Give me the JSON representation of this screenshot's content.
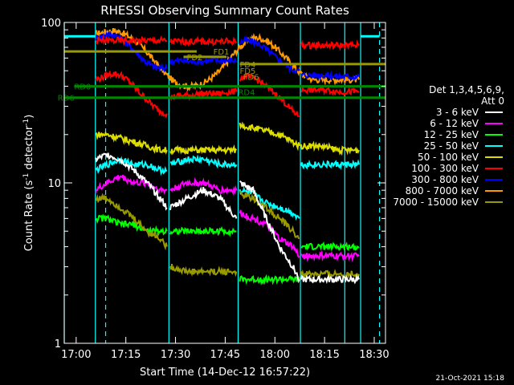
{
  "chart_data": {
    "type": "line",
    "title": "RHESSI Observing Summary Count Rates",
    "xlabel": "Start Time (14-Dec-12 16:57:22)",
    "ylabel_main": "Count Rate (s",
    "ylabel_sup": "-1",
    "ylabel_end": " detector",
    "ylabel_sup2": "-1",
    "ylabel_close": ")",
    "x_range_min": [
      -2.4,
      37.0
    ],
    "y_range": [
      1,
      100
    ],
    "y_scale": "log",
    "x_ticks": [
      {
        "label": "17:00",
        "min": 2.6
      },
      {
        "label": "17:15",
        "min": 17.6
      },
      {
        "label": "17:30",
        "min": 32.6
      },
      {
        "label": "17:45",
        "min": 47.6
      },
      {
        "label": "18:00",
        "min": 62.6
      },
      {
        "label": "18:15",
        "min": 77.6
      },
      {
        "label": "18:30",
        "min": 92.6
      }
    ],
    "y_ticks": [
      {
        "label": "100",
        "v": 100
      },
      {
        "label": "10",
        "v": 10
      },
      {
        "label": "1",
        "v": 1
      }
    ],
    "legend": {
      "placement": "right",
      "header1": "Det 1,3,4,5,6,9,",
      "header2": "Att 0",
      "entries": [
        {
          "label": "3 - 6 keV",
          "color": "#ffffff"
        },
        {
          "label": "6 - 12 keV",
          "color": "#ff00ff"
        },
        {
          "label": "12 - 25 keV",
          "color": "#00ff00"
        },
        {
          "label": "25 - 50 keV",
          "color": "#00ffff"
        },
        {
          "label": "50 - 100 keV",
          "color": "#dddd00"
        },
        {
          "label": "100 - 300 keV",
          "color": "#ff0000"
        },
        {
          "label": "300 - 800 keV",
          "color": "#0000ff"
        },
        {
          "label": "800 - 7000 keV",
          "color": "#ff9900"
        },
        {
          "label": "7000 - 15000 keV",
          "color": "#999900"
        }
      ]
    },
    "time_x_range": [
      -1.0,
      96.0
    ],
    "series": [
      {
        "name": "800 - 7000 keV",
        "color": "#ff9900",
        "segments": [
          {
            "x": [
              8.5,
              10,
              12,
              14,
              16,
              18,
              20,
              22,
              24,
              26,
              28,
              30,
              32,
              34,
              36,
              38,
              40,
              42,
              44,
              46,
              48,
              50,
              52,
              54,
              56,
              58,
              60,
              62,
              64,
              66,
              68,
              70,
              72,
              74,
              76,
              78,
              80,
              82,
              84,
              86,
              88
            ],
            "y": [
              85,
              86,
              88,
              89,
              87,
              83,
              78,
              72,
              65,
              58,
              52,
              47,
              43,
              41,
              40,
              40,
              41,
              43,
              46,
              50,
              56,
              63,
              70,
              76,
              80,
              80,
              77,
              72,
              66,
              60,
              54,
              49,
              46,
              44,
              44,
              44,
              44,
              44,
              44,
              44,
              44
            ]
          }
        ]
      },
      {
        "name": "300 - 800 keV",
        "color": "#0000ff",
        "segments": [
          {
            "x": [
              8.5,
              10,
              12,
              14,
              16,
              18,
              20,
              22,
              24,
              26,
              28,
              30
            ],
            "y": [
              80,
              82,
              84,
              84,
              80,
              74,
              67,
              61,
              56,
              53,
              52,
              52
            ]
          },
          {
            "x": [
              31,
              34,
              37,
              40,
              43,
              46,
              49,
              51
            ],
            "y": [
              57,
              58,
              57,
              57,
              58,
              58,
              58,
              58
            ]
          },
          {
            "x": [
              52,
              54,
              56,
              58,
              60,
              62,
              64,
              66,
              68,
              70
            ],
            "y": [
              75,
              77,
              76,
              73,
              68,
              63,
              58,
              54,
              51,
              50
            ]
          },
          {
            "x": [
              70.5,
              74,
              78,
              82,
              86,
              88
            ],
            "y": [
              47,
              47,
              47,
              46,
              46,
              46
            ]
          }
        ]
      },
      {
        "name": "100 - 300 keV",
        "color": "#ff0000",
        "segments": [
          {
            "x": [
              8.5,
              10,
              12,
              14,
              16,
              18,
              20,
              22,
              24,
              26,
              28,
              30
            ],
            "y": [
              44,
              45,
              47,
              48,
              47,
              44,
              40,
              36,
              33,
              30,
              28,
              27
            ]
          },
          {
            "x": [
              31,
              34,
              37,
              40,
              43,
              46,
              49,
              51
            ],
            "y": [
              34,
              35,
              35,
              36,
              36,
              36,
              37,
              37
            ]
          },
          {
            "x": [
              52,
              54,
              56,
              58,
              60,
              62,
              64,
              66,
              68,
              70
            ],
            "y": [
              45,
              46,
              45,
              43,
              40,
              37,
              34,
              31,
              28,
              26
            ]
          },
          {
            "x": [
              70.5,
              74,
              78,
              82,
              86,
              88
            ],
            "y": [
              38,
              38,
              38,
              37,
              37,
              37
            ]
          },
          {
            "x": [
              8.5,
              30
            ],
            "y": [
              77,
              77
            ]
          },
          {
            "x": [
              31,
              51
            ],
            "y": [
              76,
              76
            ]
          },
          {
            "x": [
              70.5,
              88
            ],
            "y": [
              72,
              72
            ]
          }
        ]
      },
      {
        "name": "50 - 100 keV",
        "color": "#dddd00",
        "segments": [
          {
            "x": [
              8.5,
              12,
              16,
              20,
              24,
              28,
              30
            ],
            "y": [
              20,
              20,
              19,
              18,
              17,
              16,
              16
            ]
          },
          {
            "x": [
              31,
              36,
              41,
              46,
              51
            ],
            "y": [
              16,
              16,
              16,
              16,
              16
            ]
          },
          {
            "x": [
              52,
              56,
              60,
              64,
              68,
              70
            ],
            "y": [
              23,
              22,
              21,
              20,
              18,
              17
            ]
          },
          {
            "x": [
              70.5,
              76,
              82,
              88
            ],
            "y": [
              17,
              17,
              16,
              16
            ]
          }
        ]
      },
      {
        "name": "25 - 50 keV",
        "color": "#00ffff",
        "segments": [
          {
            "x": [
              8.5,
              12,
              16,
              20,
              24,
              28,
              30
            ],
            "y": [
              12,
              13,
              14,
              13,
              13,
              12,
              12
            ]
          },
          {
            "x": [
              31,
              36,
              41,
              46,
              51
            ],
            "y": [
              13,
              14,
              14,
              13,
              13
            ]
          },
          {
            "x": [
              52,
              56,
              60,
              64,
              68,
              70
            ],
            "y": [
              9,
              8.5,
              7.5,
              7,
              6.5,
              6
            ]
          },
          {
            "x": [
              70.5,
              76,
              82,
              88
            ],
            "y": [
              13,
              13,
              13,
              13
            ]
          }
        ]
      },
      {
        "name": "6 - 12 keV",
        "color": "#ff00ff",
        "segments": [
          {
            "x": [
              8.5,
              12,
              16,
              20,
              24,
              28,
              30
            ],
            "y": [
              9,
              10,
              11,
              10,
              10,
              9,
              9
            ]
          },
          {
            "x": [
              31,
              36,
              41,
              46,
              51
            ],
            "y": [
              9,
              10,
              10,
              9,
              9
            ]
          },
          {
            "x": [
              52,
              56,
              60,
              64,
              68,
              70
            ],
            "y": [
              6.5,
              6,
              5.5,
              4.5,
              4,
              3.5
            ]
          },
          {
            "x": [
              70.5,
              76,
              82,
              88
            ],
            "y": [
              3.5,
              3.5,
              3.5,
              3.5
            ]
          }
        ]
      },
      {
        "name": "12 - 25 keV",
        "color": "#00ff00",
        "segments": [
          {
            "x": [
              8.5,
              12,
              16,
              20,
              24,
              28,
              30
            ],
            "y": [
              6,
              6,
              5.5,
              5.5,
              5,
              5,
              5
            ]
          },
          {
            "x": [
              31,
              36,
              41,
              46,
              51
            ],
            "y": [
              5,
              5,
              5,
              5,
              5
            ]
          },
          {
            "x": [
              52,
              56,
              60,
              64,
              68,
              70
            ],
            "y": [
              2.5,
              2.5,
              2.5,
              2.5,
              2.5,
              2.5
            ]
          },
          {
            "x": [
              70.5,
              76,
              82,
              88
            ],
            "y": [
              4,
              4,
              4,
              4
            ]
          }
        ]
      },
      {
        "name": "7000 - 15000 keV",
        "color": "#999900",
        "segments": [
          {
            "x": [
              8.5,
              12,
              16,
              20,
              24,
              28,
              30
            ],
            "y": [
              8,
              8,
              7,
              6,
              5,
              4.5,
              4
            ]
          },
          {
            "x": [
              31,
              36,
              41,
              46,
              51
            ],
            "y": [
              3,
              2.8,
              2.8,
              2.8,
              2.8
            ]
          },
          {
            "x": [
              52,
              56,
              60,
              64,
              68,
              70
            ],
            "y": [
              8.5,
              8,
              7,
              6,
              5,
              4.5
            ]
          },
          {
            "x": [
              70.5,
              76,
              82,
              88
            ],
            "y": [
              2.7,
              2.7,
              2.7,
              2.7
            ]
          }
        ]
      },
      {
        "name": "3 - 6 keV",
        "color": "#ffffff",
        "segments": [
          {
            "x": [
              8.5,
              12,
              16,
              20,
              24,
              28,
              30
            ],
            "y": [
              14,
              15,
              14,
              12,
              10,
              8,
              7
            ]
          },
          {
            "x": [
              31,
              36,
              41,
              46,
              51
            ],
            "y": [
              7,
              8,
              9,
              8,
              6
            ]
          },
          {
            "x": [
              52,
              56,
              60,
              64,
              68,
              70
            ],
            "y": [
              10,
              9,
              6,
              4,
              3,
              2.5
            ]
          },
          {
            "x": [
              70.5,
              76,
              82,
              88
            ],
            "y": [
              2.5,
              2.5,
              2.5,
              2.5
            ]
          }
        ]
      }
    ],
    "vertical_markers": [
      {
        "min": -1.0,
        "color": "#00ffff",
        "style": "solid"
      },
      {
        "min": 8.4,
        "color": "#00ffff",
        "style": "solid"
      },
      {
        "min": 11.5,
        "color": "#00ffff",
        "style": "dashed"
      },
      {
        "min": 30.6,
        "color": "#00ffff",
        "style": "solid"
      },
      {
        "min": 51.5,
        "color": "#00ffff",
        "style": "solid"
      },
      {
        "min": 70.3,
        "color": "#00ffff",
        "style": "solid"
      },
      {
        "min": 83.7,
        "color": "#00ffff",
        "style": "solid"
      },
      {
        "min": 88.5,
        "color": "#00ffff",
        "style": "solid"
      },
      {
        "min": 94.2,
        "color": "#00ffff",
        "style": "dashed"
      }
    ],
    "horizontal_bars": [
      {
        "x": [
          -1.0,
          8.4
        ],
        "y": 82,
        "color": "#00ffff"
      },
      {
        "x": [
          88.5,
          94.2
        ],
        "y": 82,
        "color": "#00ffff"
      },
      {
        "x": [
          -1.0,
          39
        ],
        "y": 66,
        "color": "#999900"
      },
      {
        "x": [
          35,
          48
        ],
        "y": 61,
        "color": "#999900"
      },
      {
        "x": [
          52,
          96
        ],
        "y": 55,
        "color": "#999900"
      },
      {
        "x": [
          2,
          96
        ],
        "y": 40,
        "color": "#008800"
      },
      {
        "x": [
          -1.0,
          96
        ],
        "y": 34,
        "color": "#008800"
      }
    ],
    "annotations": [
      {
        "text": "FD1",
        "x_min": 44,
        "y": 66,
        "color": "#999900"
      },
      {
        "text": "FD2",
        "x_min": 36,
        "y": 61,
        "color": "#999900"
      },
      {
        "text": "FD4",
        "x_min": 52,
        "y": 55,
        "color": "#999900"
      },
      {
        "text": "FD5",
        "x_min": 52,
        "y": 50,
        "color": "#999900"
      },
      {
        "text": "FD6",
        "x_min": 53,
        "y": 46,
        "color": "#999900"
      },
      {
        "text": "RD0",
        "x_min": 2,
        "y": 40,
        "color": "#008800"
      },
      {
        "text": "RD6",
        "x_min": -3,
        "y": 34,
        "color": "#008800"
      },
      {
        "text": "RD4",
        "x_min": 51.5,
        "y": 37,
        "color": "#008800"
      }
    ]
  },
  "footer_date": "21-Oct-2021 15:18"
}
